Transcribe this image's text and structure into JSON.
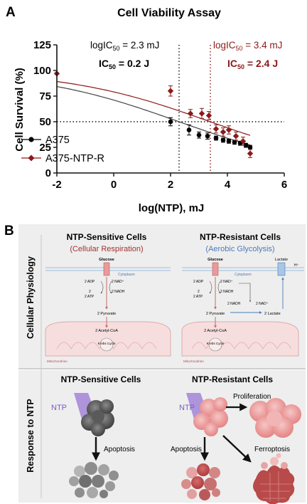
{
  "panel_a": {
    "letter": "A",
    "ic50_black": {
      "log_prefix": "logIC",
      "log_sub": "50",
      "log_value": " = 2.3 mJ",
      "ic_prefix": "IC",
      "ic_sub": "50",
      "ic_value": " = 0.2 J"
    },
    "ic50_red": {
      "log_prefix": "logIC",
      "log_sub": "50",
      "log_value": " = 3.4 mJ",
      "ic_prefix": "IC",
      "ic_sub": "50",
      "ic_value": " = 2.4 J"
    }
  },
  "chart_data": {
    "type": "scatter",
    "title": "Cell Viability Assay",
    "xlabel": "log(NTP), mJ",
    "ylabel": "Cell Survival (%)",
    "xlim": [
      -2,
      6
    ],
    "ylim": [
      0,
      125
    ],
    "xticks": [
      -2,
      0,
      2,
      4,
      6
    ],
    "yticks": [
      0,
      25,
      50,
      75,
      100,
      125
    ],
    "reference_lines": {
      "y50": 50,
      "x_black": 2.3,
      "x_red": 3.4
    },
    "legend_position": "lower-left",
    "series": [
      {
        "name": "A375",
        "color": "#000000",
        "marker": "circle",
        "points": [
          {
            "x": 2.0,
            "y": 50,
            "err": 4
          },
          {
            "x": 2.65,
            "y": 42,
            "err": 5
          },
          {
            "x": 3.0,
            "y": 37,
            "err": 3
          },
          {
            "x": 3.3,
            "y": 36,
            "err": 3
          },
          {
            "x": 3.6,
            "y": 34,
            "err": 2
          },
          {
            "x": 3.85,
            "y": 32,
            "err": 2
          },
          {
            "x": 4.05,
            "y": 31,
            "err": 2
          },
          {
            "x": 4.25,
            "y": 30,
            "err": 2
          },
          {
            "x": 4.45,
            "y": 29,
            "err": 2
          },
          {
            "x": 4.65,
            "y": 27,
            "err": 2
          },
          {
            "x": 4.8,
            "y": 25,
            "err": 2
          }
        ],
        "curve": {
          "top": 100,
          "bottom": 0,
          "log_ic50": 2.3,
          "hill": 0.17,
          "x_range": [
            -2,
            4.8
          ]
        }
      },
      {
        "name": "A375-NTP-R",
        "color": "#8b1a1a",
        "marker": "diamond",
        "points": [
          {
            "x": -2.0,
            "y": 97,
            "err": 0
          },
          {
            "x": 2.0,
            "y": 80,
            "err": 5
          },
          {
            "x": 2.7,
            "y": 58,
            "err": 4
          },
          {
            "x": 3.1,
            "y": 58,
            "err": 5
          },
          {
            "x": 3.35,
            "y": 56,
            "err": 4
          },
          {
            "x": 3.6,
            "y": 43,
            "err": 4
          },
          {
            "x": 3.85,
            "y": 40,
            "err": 4
          },
          {
            "x": 4.05,
            "y": 42,
            "err": 4
          },
          {
            "x": 4.3,
            "y": 36,
            "err": 4
          },
          {
            "x": 4.55,
            "y": 31,
            "err": 4
          },
          {
            "x": 4.8,
            "y": 19,
            "err": 4
          }
        ],
        "curve": {
          "top": 100,
          "bottom": 0,
          "log_ic50": 3.4,
          "hill": 0.17,
          "x_range": [
            -2,
            4.8
          ]
        }
      }
    ]
  },
  "panel_b": {
    "letter": "B",
    "row1_label": "Cellular Physiology",
    "row2_label": "Response to NTP",
    "sensitive": {
      "title": "NTP-Sensitive Cells",
      "subtitle": "(Cellular Respiration)",
      "glucose": "Glucose",
      "cytoplasm": "Cytoplasm",
      "adp": "2 ADP",
      "atp": "2 ATP",
      "two": "2",
      "nad": "2 NAD⁺",
      "nadh": "2 NADH",
      "pyruvate": "2 Pyruvate",
      "acetyl": "2 Acetyl-CoA",
      "krebs": "Krebs Cycle",
      "mito": "Mitochondrion"
    },
    "resistant": {
      "title": "NTP-Resistant Cells",
      "subtitle": "(Aerobic Glycolysis)",
      "glucose": "Glucose",
      "lactate_top": "Lactate",
      "h": "H⁺",
      "cytoplasm": "Cytoplasm",
      "adp": "2 ADP",
      "atp": "2 ATP",
      "two": "2",
      "nad": "2 NAD⁺",
      "nadh": "2 NADH",
      "nadh2": "2 NADH",
      "nad2": "2 NAD⁺",
      "pyruvate": "2 Pyruvate",
      "lactate": "2 Lactate",
      "acetyl": "2 Acetyl-CoA",
      "krebs": "Krebs Cycle",
      "mito": "Mitochondrion"
    },
    "response_sensitive": {
      "title": "NTP-Sensitive Cells",
      "ntp": "NTP",
      "apoptosis": "Apoptosis"
    },
    "response_resistant": {
      "title": "NTP-Resistant Cells",
      "ntp": "NTP",
      "proliferation": "Proliferation",
      "apoptosis": "Apoptosis",
      "ferroptosis": "Ferroptosis"
    },
    "colors": {
      "red_dark": "#8b1a1a",
      "blue": "#4a7bb7",
      "pink": "#e58a8a",
      "panel_bg": "#efefef"
    }
  }
}
